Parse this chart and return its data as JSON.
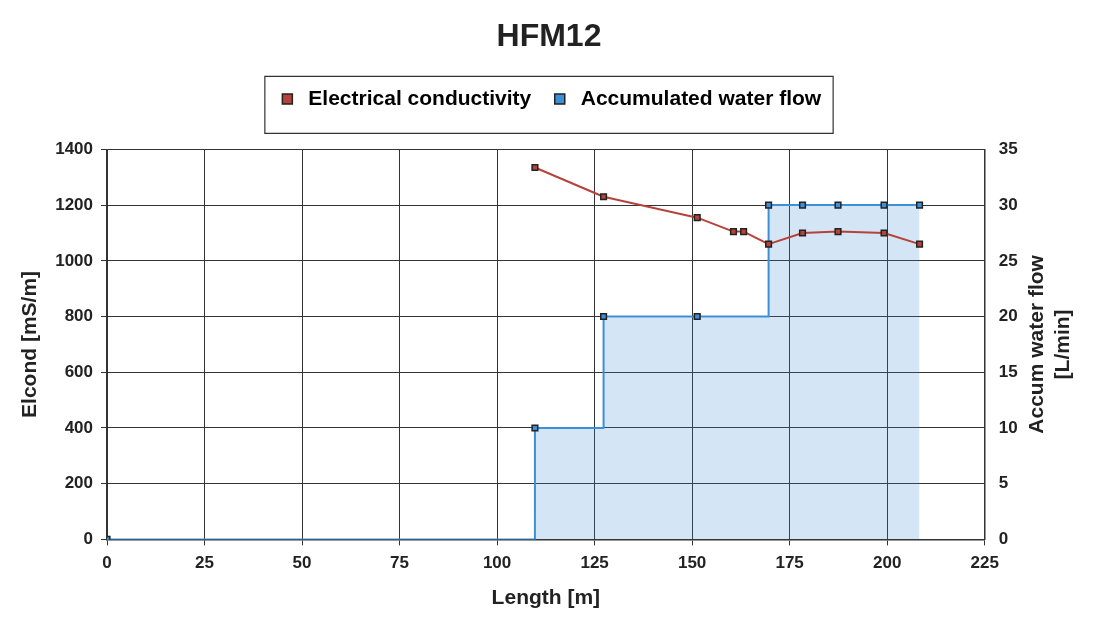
{
  "chart_data": {
    "type": "line",
    "title": "HFM12",
    "xlabel": "Length [m]",
    "ylabel": "Elcond [mS/m]",
    "y2label": "Accum water flow [L/min]",
    "xlim": [
      0,
      225
    ],
    "xticks": [
      0,
      25,
      50,
      75,
      100,
      125,
      150,
      175,
      200,
      225
    ],
    "ylim": [
      0,
      1400
    ],
    "yticks": [
      0,
      200,
      400,
      600,
      800,
      1000,
      1200,
      1400
    ],
    "y2lim": [
      0,
      35
    ],
    "y2ticks": [
      0,
      5,
      10,
      15,
      20,
      25,
      30,
      35
    ],
    "grid": true,
    "legend": "top",
    "marker": "square",
    "series": [
      {
        "name": "Electrical conductivity",
        "color": "#b5433a",
        "x": [
          109.7,
          127.3,
          151.3,
          160.6,
          163.2,
          169.6,
          178.3,
          187.4,
          199.2,
          208.3
        ],
        "values": [
          1335,
          1230,
          1155,
          1105,
          1105,
          1060,
          1100,
          1105,
          1100,
          1060
        ]
      },
      {
        "name": "Accumulated water flow",
        "type": "step",
        "axis": "y2",
        "color": "#3d8fd8",
        "x": [
          0,
          109.7,
          127.3,
          151.3,
          169.6,
          178.3,
          187.4,
          199.2,
          208.3
        ],
        "values": [
          0,
          10,
          20,
          20,
          30,
          30,
          30,
          30,
          30
        ]
      }
    ]
  }
}
